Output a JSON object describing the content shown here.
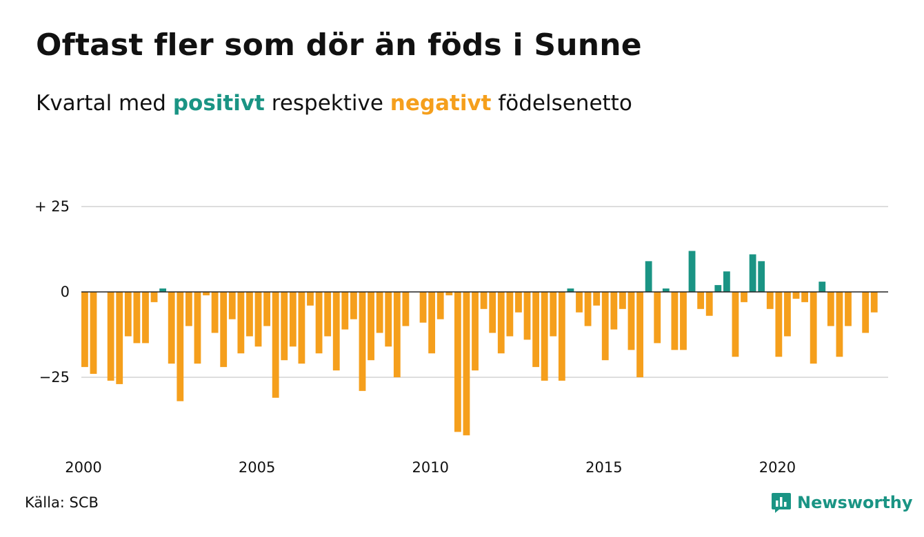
{
  "title": "Oftast fler som dör än föds i Sunne",
  "subtitle": {
    "before": "Kvartal med",
    "positive": "positivt",
    "middle": "respektive",
    "negative": "negativt",
    "after": "födelsenetto"
  },
  "colors": {
    "positive": "#1a9484",
    "negative": "#f59f1c",
    "grid": "#dddddd",
    "zero_line": "#222222",
    "text": "#111111",
    "brand": "#1a9484"
  },
  "source": "Källa: SCB",
  "brand": {
    "name": "Newsworthy",
    "icon": "newsworthy-logo-icon"
  },
  "chart_data": {
    "type": "bar",
    "title": "Oftast fler som dör än föds i Sunne",
    "subtitle": "Kvartal med positivt respektive negativt födelsenetto",
    "xlabel": "",
    "ylabel": "",
    "ylim": [
      -42,
      25
    ],
    "xlim": [
      2000,
      2023.25
    ],
    "y_ticks": [
      {
        "value": 25,
        "label": "+ 25"
      },
      {
        "value": 0,
        "label": "0"
      },
      {
        "value": -25,
        "label": "−25"
      }
    ],
    "x_ticks": [
      {
        "value": 2000,
        "label": "2000"
      },
      {
        "value": 2005,
        "label": "2005"
      },
      {
        "value": 2010,
        "label": "2010"
      },
      {
        "value": 2015,
        "label": "2015"
      },
      {
        "value": 2020,
        "label": "2020"
      }
    ],
    "grid": true,
    "legend": "none",
    "start_year": 2000,
    "periods_per_year": 4,
    "values": [
      -22,
      -24,
      0,
      -26,
      -27,
      -13,
      -15,
      -15,
      -3,
      1,
      -21,
      -32,
      -10,
      -21,
      -1,
      -12,
      -22,
      -8,
      -18,
      -13,
      -16,
      -10,
      -31,
      -20,
      -16,
      -21,
      -4,
      -18,
      -13,
      -23,
      -11,
      -8,
      -29,
      -20,
      -12,
      -16,
      -25,
      -10,
      0,
      -9,
      -18,
      -8,
      -1,
      -41,
      -42,
      -23,
      -5,
      -12,
      -18,
      -13,
      -6,
      -14,
      -22,
      -26,
      -13,
      -26,
      1,
      -6,
      -10,
      -4,
      -20,
      -11,
      -5,
      -17,
      -25,
      9,
      -15,
      1,
      -17,
      -17,
      12,
      -5,
      -7,
      2,
      6,
      -19,
      -3,
      11,
      9,
      -5,
      -19,
      -13,
      -2,
      -3,
      -21,
      3,
      -10,
      -19,
      -10,
      0,
      -12,
      -6
    ]
  }
}
